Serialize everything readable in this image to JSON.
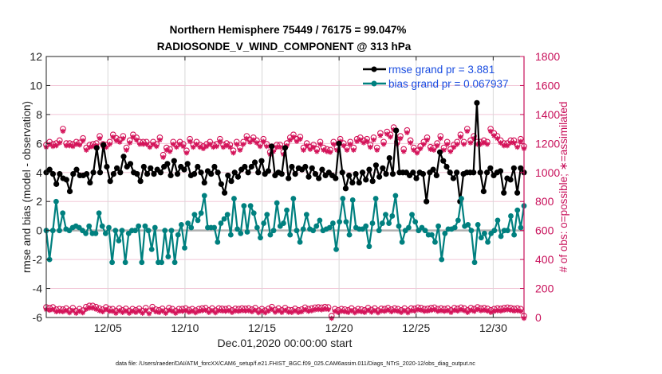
{
  "chart_data": {
    "type": "line",
    "title": "Northern Hemisphere 75449 / 76175 = 99.047%",
    "subtitle": "RADIOSONDE_V_WIND_COMPONENT @ 313 hPa",
    "xlabel": "Dec.01,2020 00:00:00 start",
    "ylabel": "rmse and bias (model - observation)",
    "y2label": "# of obs: o=possible; ∗=assimilated",
    "footer": "data file: /Users/raeder/DAI/ATM_forcXX/CAM6_setup/f.e21.FHIST_BGC.f09_025.CAM6assim.011/Diags_NTrS_2020-12/obs_diag_output.nc",
    "xlim_days": [
      0,
      31.0
    ],
    "ylim": [
      -6,
      12
    ],
    "y2lim": [
      0,
      1800
    ],
    "grid": true,
    "legend_position": "top-right",
    "x_tick_labels": [
      {
        "label": "12/05",
        "day": 4
      },
      {
        "label": "12/10",
        "day": 9
      },
      {
        "label": "12/15",
        "day": 14
      },
      {
        "label": "12/20",
        "day": 19
      },
      {
        "label": "12/25",
        "day": 24
      },
      {
        "label": "12/30",
        "day": 29
      }
    ],
    "y_ticks": [
      -6,
      -4,
      -2,
      0,
      2,
      4,
      6,
      8,
      10,
      12
    ],
    "y2_ticks": [
      0,
      200,
      400,
      600,
      800,
      1000,
      1200,
      1400,
      1600,
      1800
    ],
    "x_step_days": 0.25,
    "series": [
      {
        "name": "rmse grand pr = 3.881",
        "color": "#000000",
        "values": [
          4.0,
          4.2,
          3.9,
          3.2,
          3.9,
          3.6,
          3.5,
          2.7,
          3.9,
          4.2,
          3.8,
          3.8,
          3.9,
          3.3,
          4.0,
          5.7,
          4.0,
          5.9,
          4.4,
          3.4,
          3.9,
          4.3,
          4.0,
          5.1,
          4.4,
          4.6,
          4.0,
          3.9,
          3.4,
          4.4,
          3.9,
          4.3,
          3.9,
          4.2,
          4.0,
          4.4,
          4.6,
          3.8,
          4.8,
          3.9,
          4.4,
          4.2,
          4.6,
          3.8,
          3.9,
          4.4,
          4.0,
          3.3,
          4.1,
          3.9,
          4.4,
          4.0,
          3.2,
          2.6,
          3.8,
          3.4,
          4.0,
          3.7,
          4.2,
          4.4,
          4.0,
          4.4,
          4.7,
          4.0,
          4.8,
          3.9,
          4.1,
          5.8,
          3.8,
          4.0,
          3.9,
          5.7,
          3.6,
          4.4,
          3.9,
          4.3,
          4.2,
          4.4,
          3.7,
          4.3,
          3.9,
          3.6,
          4.2,
          3.8,
          4.0,
          3.8,
          3.6,
          6.0,
          4.0,
          2.9,
          3.8,
          3.3,
          3.9,
          3.3,
          4.0,
          3.5,
          4.2,
          3.4,
          4.5,
          3.7,
          4.3,
          3.9,
          5.0,
          3.9,
          6.9,
          4.0,
          4.0,
          4.0,
          3.8,
          4.0,
          3.6,
          4.0,
          3.9,
          2.0,
          4.0,
          4.2,
          3.8,
          5.4,
          4.8,
          4.4,
          4.0,
          3.6,
          4.0,
          2.0,
          3.9,
          4.0,
          4.0,
          4.0,
          8.8,
          4.0,
          2.7,
          4.0,
          4.3,
          3.8,
          4.0,
          4.1,
          2.6,
          3.6,
          3.5,
          4.3,
          2.6,
          4.3,
          4.0
        ],
        "marker": "filled-circle"
      },
      {
        "name": "bias grand pr = 0.067937",
        "color": "#00807f",
        "values": [
          0.0,
          -2.0,
          0.0,
          2.0,
          0.0,
          1.2,
          0.1,
          0.0,
          0.2,
          0.3,
          0.2,
          0.0,
          -0.2,
          0.3,
          -0.2,
          -0.2,
          1.2,
          0.3,
          -0.2,
          0.2,
          -2.2,
          0.0,
          -0.7,
          0.0,
          -2.2,
          -0.2,
          0.0,
          0.0,
          0.3,
          -2.2,
          0.3,
          0.0,
          -1.3,
          0.2,
          -2.2,
          -2.2,
          0.0,
          -1.8,
          0.0,
          -2.2,
          -0.3,
          0.4,
          -1.2,
          0.5,
          0.2,
          1.1,
          0.7,
          1.2,
          2.4,
          0.2,
          0.2,
          0.2,
          -0.8,
          0.5,
          0.8,
          1.1,
          -0.3,
          2.2,
          0.1,
          -0.2,
          1.7,
          -0.1,
          1.7,
          1.2,
          0.2,
          -0.5,
          0.5,
          1.1,
          -0.3,
          0.0,
          1.9,
          0.3,
          0.5,
          1.4,
          -0.3,
          2.2,
          0.0,
          -0.8,
          0.1,
          1.1,
          0.1,
          0.0,
          0.3,
          0.7,
          0.0,
          0.1,
          0.2,
          0.5,
          -1.3,
          0.6,
          2.2,
          0.6,
          -0.3,
          2.1,
          0.2,
          0.1,
          0.1,
          0.3,
          -1.1,
          0.5,
          2.2,
          0.0,
          0.5,
          1.1,
          0.5,
          1.0,
          2.4,
          0.3,
          -0.8,
          0.0,
          0.2,
          1.1,
          0.6,
          0.0,
          0.2,
          0.0,
          -0.3,
          -0.3,
          -0.8,
          0.3,
          -2.0,
          -0.2,
          0.1,
          0.1,
          0.2,
          0.7,
          2.2,
          0.3,
          0.4,
          0.0,
          -2.2,
          0.4,
          -0.5,
          -0.2,
          -0.8,
          -0.2,
          0.0,
          0.7,
          -0.4,
          0.0,
          0.0,
          1.0,
          -0.3,
          1.4,
          0.2,
          1.7
        ],
        "marker": "filled-circle"
      }
    ],
    "obs_counts": {
      "color": "#d4145a",
      "possible_high": [
        1180,
        1200,
        1185,
        1190,
        1210,
        1290,
        1190,
        1190,
        1185,
        1200,
        1195,
        1225,
        1160,
        1180,
        1185,
        1190,
        1240,
        1185,
        1180,
        1200,
        1250,
        1225,
        1215,
        1240,
        1160,
        1210,
        1250,
        1230,
        1200,
        1200,
        1200,
        1180,
        1200,
        1185,
        1230,
        1110,
        1160,
        1150,
        1200,
        1180,
        1200,
        1185,
        1140,
        1220,
        1180,
        1200,
        1180,
        1170,
        1185,
        1200,
        1180,
        1185,
        1220,
        1180,
        1190,
        1180,
        1140,
        1200,
        1160,
        1200,
        1240,
        1215,
        1230,
        1210,
        1185,
        1220,
        1185,
        1130,
        1150,
        1180,
        1180,
        1130,
        1190,
        1230,
        1250,
        1220,
        1235,
        1160,
        1190,
        1165,
        1180,
        1150,
        1200,
        1160,
        1150,
        1145,
        1200,
        1160,
        1220,
        1190,
        1160,
        1200,
        1160,
        1220,
        1230,
        1210,
        1220,
        1180,
        1230,
        1160,
        1260,
        1200,
        1270,
        1250,
        1300,
        1200,
        1240,
        1150,
        1280,
        1210,
        1160,
        1140,
        1170,
        1200,
        1230,
        1165,
        1160,
        1190,
        1240,
        1160,
        1200,
        1150,
        1180,
        1200,
        1250,
        1200,
        1290,
        1210,
        1240,
        1200,
        1200,
        1210,
        1200,
        1290,
        1260,
        1240,
        1210,
        1190,
        1190,
        1210,
        1210,
        1180,
        1220,
        1170
      ],
      "possible_low": [
        60,
        55,
        60,
        45,
        48,
        45,
        52,
        38,
        55,
        35,
        48,
        38,
        62,
        70,
        70,
        62,
        52,
        45,
        60,
        48,
        48,
        35,
        52,
        40,
        50,
        35,
        48,
        40,
        50,
        35,
        55,
        32,
        62,
        45,
        40,
        50,
        35,
        55,
        48,
        35,
        48,
        48,
        52,
        42,
        48,
        38,
        48,
        52,
        55,
        40,
        52,
        38,
        52,
        50,
        48,
        52,
        40,
        50,
        48,
        52,
        50,
        52,
        45,
        55,
        38,
        48,
        38,
        50,
        62,
        42,
        52,
        40,
        55,
        42,
        40,
        50,
        40,
        45,
        58,
        48,
        52,
        58,
        60,
        58,
        62,
        60,
        0,
        48,
        40,
        48,
        45,
        40,
        52,
        38,
        48,
        45,
        40,
        55,
        42,
        52,
        38,
        50,
        48,
        55,
        45,
        52,
        48,
        40,
        52,
        38,
        52,
        50,
        58,
        55,
        48,
        50,
        55,
        58,
        48,
        52,
        48,
        52,
        40,
        55,
        50,
        58,
        52,
        40,
        55,
        48,
        60,
        52,
        55,
        50,
        40,
        48,
        52,
        50,
        55,
        58,
        55,
        50,
        52,
        48,
        0
      ]
    }
  }
}
